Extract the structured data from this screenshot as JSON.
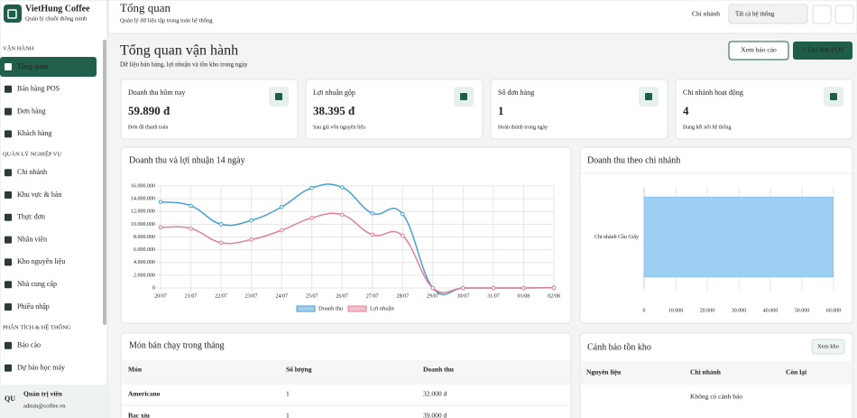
{
  "sidebar": {
    "brand": "VietHung Coffee",
    "tagline": "Quản lý chuỗi thông minh",
    "sections": [
      {
        "title": "VẬN HÀNH",
        "items": [
          "Tổng quan",
          "Bán hàng POS",
          "Đơn hàng",
          "Khách hàng"
        ]
      },
      {
        "title": "QUẢN LÝ NGHIỆP VỤ",
        "items": [
          "Chi nhánh",
          "Khu vực & bàn",
          "Thực đơn",
          "Nhân viên",
          "Kho nguyên liệu",
          "Nhà cung cấp",
          "Phiếu nhập"
        ]
      },
      {
        "title": "PHÂN TÍCH & HỆ THỐNG",
        "items": [
          "Báo cáo",
          "Dự báo học máy"
        ]
      }
    ],
    "user": {
      "initials": "QU",
      "name": "Quản trị viên",
      "email": "admin@coffee.vn"
    }
  },
  "header": {
    "title": "Tổng quan",
    "subtitle": "Quản lý dữ liệu tập trung toàn hệ thống",
    "branch_label": "Chi nhánh",
    "branch_select": "Tất cả hệ thống"
  },
  "page": {
    "title": "Tổng quan vận hành",
    "subtitle": "Dữ liệu bán hàng, lợi nhuận và tồn kho trong ngày",
    "buttons": [
      "Xem báo cáo",
      "+ Tạo đơn POS"
    ]
  },
  "kpis": [
    {
      "label": "Doanh thu hôm nay",
      "value": "59.890 đ",
      "note": "Đơn đã thanh toán"
    },
    {
      "label": "Lợi nhuận gộp",
      "value": "38.395 đ",
      "note": "Sau giá vốn nguyên liệu"
    },
    {
      "label": "Số đơn hàng",
      "value": "1",
      "note": "Hoàn thành trong ngày"
    },
    {
      "label": "Chi nhánh hoạt động",
      "value": "4",
      "note": "Đang kết nối hệ thống"
    }
  ],
  "chart_data": [
    {
      "type": "line",
      "title": "Doanh thu và lợi nhuận 14 ngày",
      "categories": [
        "20/07",
        "21/07",
        "22/07",
        "23/07",
        "24/07",
        "25/07",
        "26/07",
        "27/07",
        "28/07",
        "29/07",
        "30/07",
        "31/07",
        "01/08",
        "02/08"
      ],
      "series": [
        {
          "name": "Doanh thu",
          "color": "#4a9fd4",
          "values": [
            13500000,
            12900000,
            10000000,
            10600000,
            12700000,
            15700000,
            15800000,
            11700000,
            11600000,
            0,
            0,
            0,
            0,
            59890
          ]
        },
        {
          "name": "Lợi nhuận",
          "color": "#e57f98",
          "values": [
            9500000,
            9350000,
            7100000,
            7600000,
            9050000,
            11000000,
            11500000,
            8350000,
            8200000,
            0,
            0,
            0,
            0,
            38395
          ]
        }
      ],
      "ylim": [
        0,
        16000000
      ],
      "yticks": [
        0,
        {
          "value": 2000000,
          "label": "2.000.000"
        },
        {
          "value": 4000000,
          "label": "4.000.000"
        },
        {
          "value": 6000000,
          "label": "6.000.000"
        },
        {
          "value": 8000000,
          "label": "8.000.000"
        },
        {
          "value": 10000000,
          "label": "10.000.000"
        },
        {
          "value": 12000000,
          "label": "12.000.000"
        },
        {
          "value": 14000000,
          "label": "14.000.000"
        },
        {
          "value": 16000000,
          "label": "16.000.000"
        }
      ],
      "grid": true,
      "legend": "bottom"
    },
    {
      "type": "bar",
      "orientation": "horizontal",
      "title": "Doanh thu theo chi nhánh",
      "categories": [
        "Chi nhánh Cầu Giấy"
      ],
      "values": [
        59890
      ],
      "color": "#9ccff2",
      "xlim": [
        0,
        60000
      ],
      "xticks": [
        0,
        {
          "value": 10000,
          "label": "10.000"
        },
        {
          "value": 20000,
          "label": "20.000"
        },
        {
          "value": 30000,
          "label": "30.000"
        },
        {
          "value": 40000,
          "label": "40.000"
        },
        {
          "value": 50000,
          "label": "50.000"
        },
        {
          "value": 60000,
          "label": "60.000"
        }
      ],
      "grid": true
    }
  ],
  "top_items": {
    "title": "Món bán chạy trong tháng",
    "columns": [
      "Món",
      "Số lượng",
      "Doanh thu"
    ],
    "rows": [
      [
        "Americano",
        "1",
        "32.000 đ"
      ],
      [
        "Bạc xỉu",
        "1",
        "39.000 đ"
      ]
    ]
  },
  "stock_alerts": {
    "title": "Cảnh báo tồn kho",
    "button": "Xem kho",
    "columns": [
      "Nguyên liệu",
      "Chi nhánh",
      "Còn lại"
    ],
    "empty": "Không có cảnh báo"
  }
}
